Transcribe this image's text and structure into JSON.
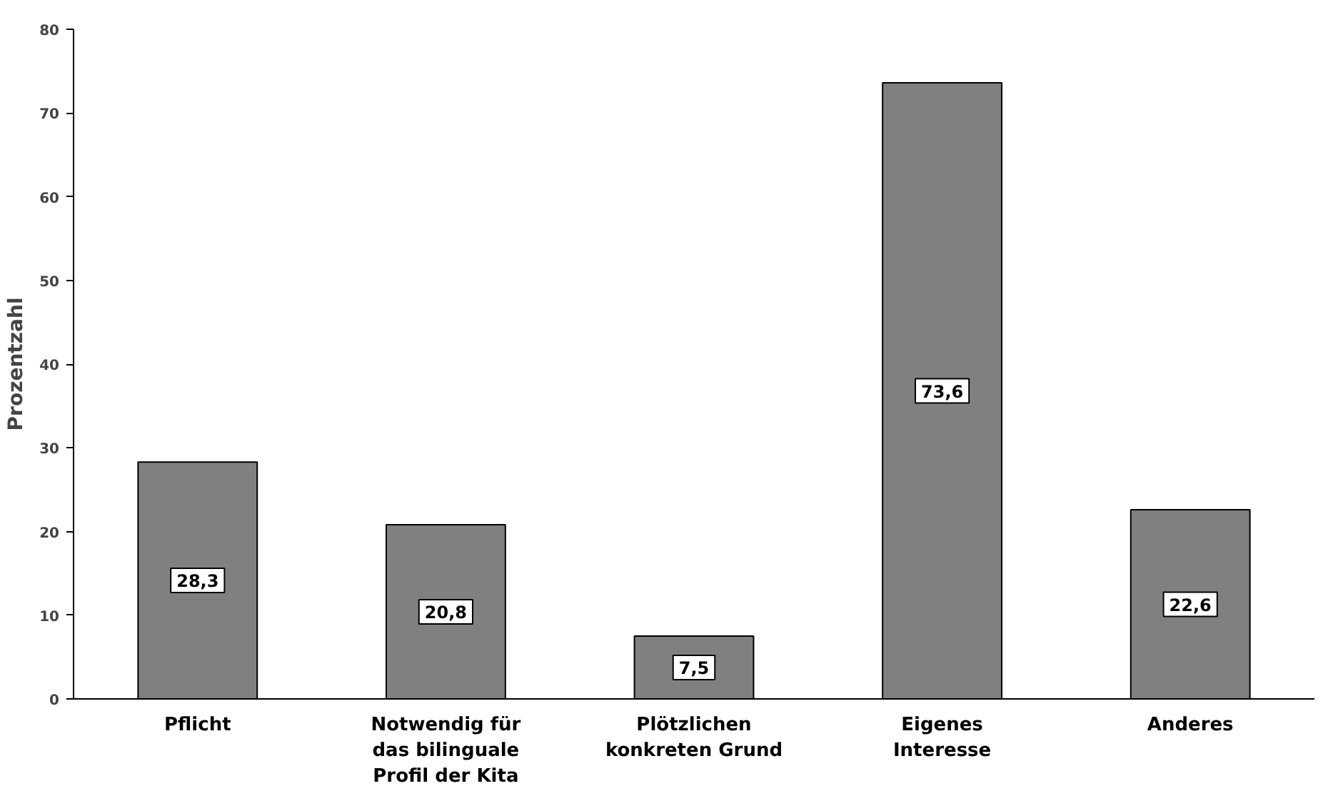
{
  "chart_data": {
    "type": "bar",
    "ylabel": "Prozentzahl",
    "categories": [
      "Pflicht",
      "Notwendig für das bilinguale Profil der Kita",
      "Plötzlichen konkreten Grund",
      "Eigenes Interesse",
      "Anderes"
    ],
    "values": [
      28.3,
      20.8,
      7.5,
      73.6,
      22.6
    ],
    "value_labels": [
      "28,3",
      "20,8",
      "7,5",
      "73,6",
      "22,6"
    ],
    "color": "#808080",
    "ylim": [
      0,
      80
    ],
    "yticks": [
      0,
      10,
      20,
      30,
      40,
      50,
      60,
      70,
      80
    ],
    "grid": false
  }
}
